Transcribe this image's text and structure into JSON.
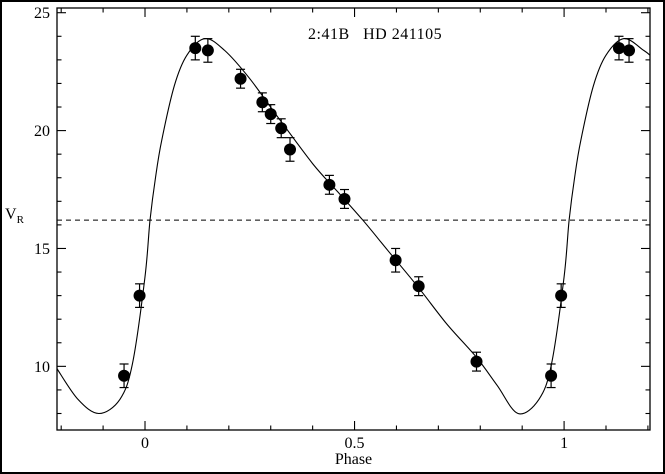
{
  "chart_data": {
    "type": "scatter",
    "title": "2:41B   HD 241105",
    "xlabel": "Phase",
    "ylabel_main": "V",
    "ylabel_sub": "R",
    "xlim": [
      -0.21,
      1.205
    ],
    "ylim": [
      7.3,
      25.2
    ],
    "grid": false,
    "x_major_ticks": [
      {
        "value": 0,
        "label": "0"
      },
      {
        "value": 0.5,
        "label": "0.5"
      },
      {
        "value": 1,
        "label": "1"
      }
    ],
    "x_minor_step": 0.1,
    "y_major_ticks": [
      {
        "value": 10,
        "label": "10"
      },
      {
        "value": 15,
        "label": "15"
      },
      {
        "value": 20,
        "label": "20"
      },
      {
        "value": 25,
        "label": "25"
      }
    ],
    "y_minor_step": 1,
    "systemic_velocity_dashed_line": 16.2,
    "points": [
      {
        "phase": -0.05,
        "v": 9.6,
        "err": 0.5
      },
      {
        "phase": -0.013,
        "v": 13.0,
        "err": 0.5
      },
      {
        "phase": 0.12,
        "v": 23.5,
        "err": 0.5
      },
      {
        "phase": 0.15,
        "v": 23.4,
        "err": 0.5
      },
      {
        "phase": 0.228,
        "v": 22.2,
        "err": 0.4
      },
      {
        "phase": 0.28,
        "v": 21.2,
        "err": 0.4
      },
      {
        "phase": 0.3,
        "v": 20.7,
        "err": 0.4
      },
      {
        "phase": 0.325,
        "v": 20.1,
        "err": 0.4
      },
      {
        "phase": 0.346,
        "v": 19.2,
        "err": 0.5
      },
      {
        "phase": 0.44,
        "v": 17.7,
        "err": 0.4
      },
      {
        "phase": 0.476,
        "v": 17.1,
        "err": 0.4
      },
      {
        "phase": 0.598,
        "v": 14.5,
        "err": 0.5
      },
      {
        "phase": 0.653,
        "v": 13.4,
        "err": 0.4
      },
      {
        "phase": 0.791,
        "v": 10.2,
        "err": 0.4
      },
      {
        "phase": 0.969,
        "v": 9.6,
        "err": 0.5
      },
      {
        "phase": 0.993,
        "v": 13.0,
        "err": 0.5
      },
      {
        "phase": 1.131,
        "v": 23.5,
        "err": 0.5
      },
      {
        "phase": 1.155,
        "v": 23.4,
        "err": 0.5
      }
    ],
    "curve": [
      [
        -0.21,
        9.9
      ],
      [
        -0.16,
        8.6
      ],
      [
        -0.11,
        8.0
      ],
      [
        -0.06,
        8.6
      ],
      [
        -0.03,
        10.1
      ],
      [
        0.0,
        13.8
      ],
      [
        0.012,
        16.2
      ],
      [
        0.025,
        18.0
      ],
      [
        0.04,
        19.6
      ],
      [
        0.07,
        21.9
      ],
      [
        0.1,
        23.2
      ],
      [
        0.143,
        23.9
      ],
      [
        0.19,
        23.4
      ],
      [
        0.25,
        22.2
      ],
      [
        0.32,
        20.5
      ],
      [
        0.4,
        18.6
      ],
      [
        0.46,
        17.4
      ],
      [
        0.52,
        16.2
      ],
      [
        0.58,
        14.9
      ],
      [
        0.65,
        13.4
      ],
      [
        0.72,
        11.8
      ],
      [
        0.79,
        10.4
      ],
      [
        0.84,
        9.2
      ],
      [
        0.89,
        8.0
      ],
      [
        0.94,
        8.6
      ],
      [
        0.97,
        10.1
      ],
      [
        1.0,
        13.8
      ],
      [
        1.012,
        16.2
      ],
      [
        1.025,
        18.0
      ],
      [
        1.04,
        19.6
      ],
      [
        1.07,
        21.9
      ],
      [
        1.1,
        23.2
      ],
      [
        1.143,
        23.9
      ],
      [
        1.19,
        23.4
      ],
      [
        1.205,
        23.2
      ]
    ]
  }
}
